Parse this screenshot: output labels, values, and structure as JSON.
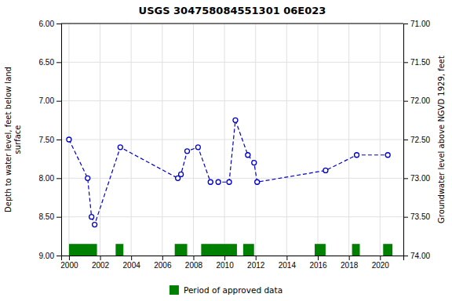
{
  "chart_data": {
    "type": "line",
    "title": "USGS 304758084551301 06E023",
    "y_label": "Depth to water level, feet below land\nsurface",
    "y2_label": "Groundwater level above NGVD 1929, feet",
    "x": [
      2000.0,
      2001.2,
      2001.45,
      2001.65,
      2003.3,
      2007.0,
      2007.2,
      2007.6,
      2008.3,
      2009.1,
      2009.6,
      2010.3,
      2010.7,
      2011.5,
      2011.9,
      2012.1,
      2016.5,
      2018.5,
      2020.5
    ],
    "series": [
      {
        "color": "#0000CC",
        "marker": "circle",
        "line_style": "dashed",
        "values": [
          7.5,
          8.0,
          8.5,
          8.6,
          7.6,
          8.0,
          7.95,
          7.65,
          7.6,
          8.05,
          8.05,
          8.05,
          7.25,
          7.7,
          7.8,
          8.05,
          7.9,
          7.7,
          7.7
        ]
      }
    ],
    "approved_periods": {
      "name": "Period of approved data",
      "color": "#008000",
      "ranges": [
        [
          2000.0,
          2001.8
        ],
        [
          2003.0,
          2003.5
        ],
        [
          2006.8,
          2007.6
        ],
        [
          2008.5,
          2010.8
        ],
        [
          2011.2,
          2011.9
        ],
        [
          2015.8,
          2016.5
        ],
        [
          2018.2,
          2018.7
        ],
        [
          2020.2,
          2020.8
        ]
      ]
    },
    "xlim": [
      1999.5,
      2021.5
    ],
    "xticks": [
      2000,
      2002,
      2004,
      2006,
      2008,
      2010,
      2012,
      2014,
      2016,
      2018,
      2020
    ],
    "ylim": [
      9.0,
      6.0
    ],
    "yticks": [
      {
        "value": 6.0,
        "label": "6.00"
      },
      {
        "value": 6.5,
        "label": "6.50"
      },
      {
        "value": 7.0,
        "label": "7.00"
      },
      {
        "value": 7.5,
        "label": "7.50"
      },
      {
        "value": 8.0,
        "label": "8.00"
      },
      {
        "value": 8.5,
        "label": "8.50"
      },
      {
        "value": 9.0,
        "label": "9.00"
      }
    ],
    "y2lim": [
      74.0,
      71.0
    ],
    "y2ticks": [
      {
        "value": 74.0,
        "label": "74.00"
      },
      {
        "value": 73.5,
        "label": "73.50"
      },
      {
        "value": 73.0,
        "label": "73.00"
      },
      {
        "value": 72.5,
        "label": "72.50"
      },
      {
        "value": 72.0,
        "label": "72.00"
      },
      {
        "value": 71.5,
        "label": "71.50"
      },
      {
        "value": 71.0,
        "label": "71.00"
      }
    ],
    "grid": true,
    "legend": "bottom"
  }
}
